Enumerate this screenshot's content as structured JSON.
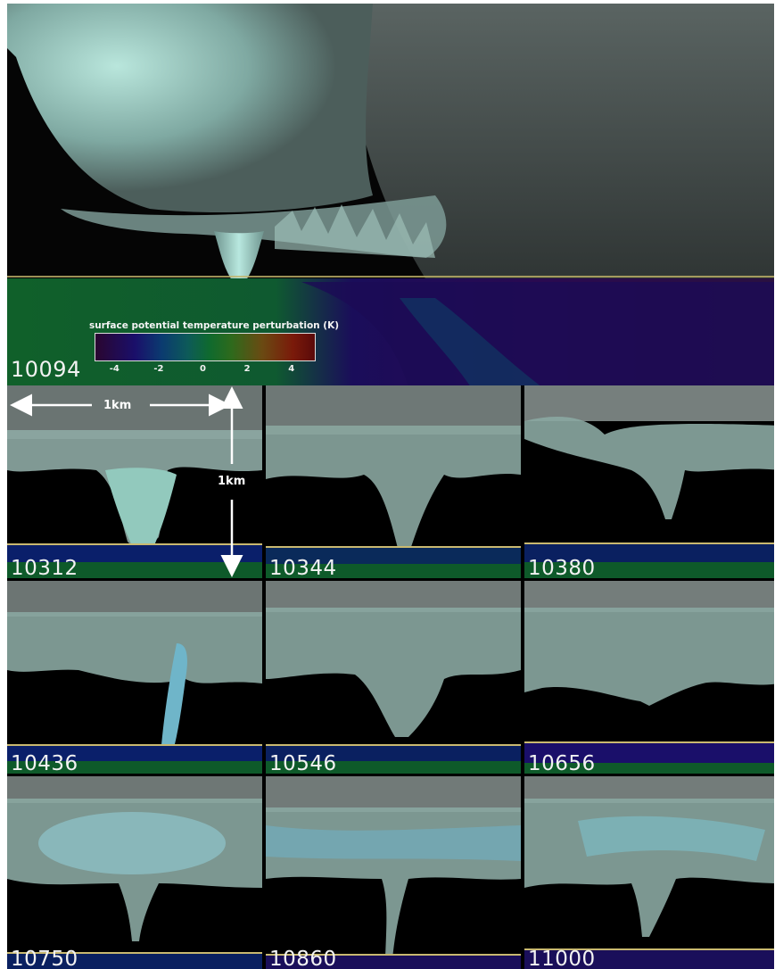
{
  "main_panel": {
    "id": "10094",
    "legend": {
      "title": "surface potential temperature perturbation (K)",
      "ticks": [
        "-4",
        "-2",
        "0",
        "2",
        "4"
      ]
    }
  },
  "scale": {
    "horizontal": "1km",
    "vertical": "1km"
  },
  "panels": [
    "10312",
    "10344",
    "10380",
    "10436",
    "10546",
    "10656",
    "10750",
    "10860",
    "11000"
  ],
  "colors": {
    "cloud": "#8fb3ad",
    "cloud_highlight": "#9fe3d6",
    "ground": "#0f6a2e",
    "cold_pool": "#1a0f6a",
    "background": "#000000"
  }
}
